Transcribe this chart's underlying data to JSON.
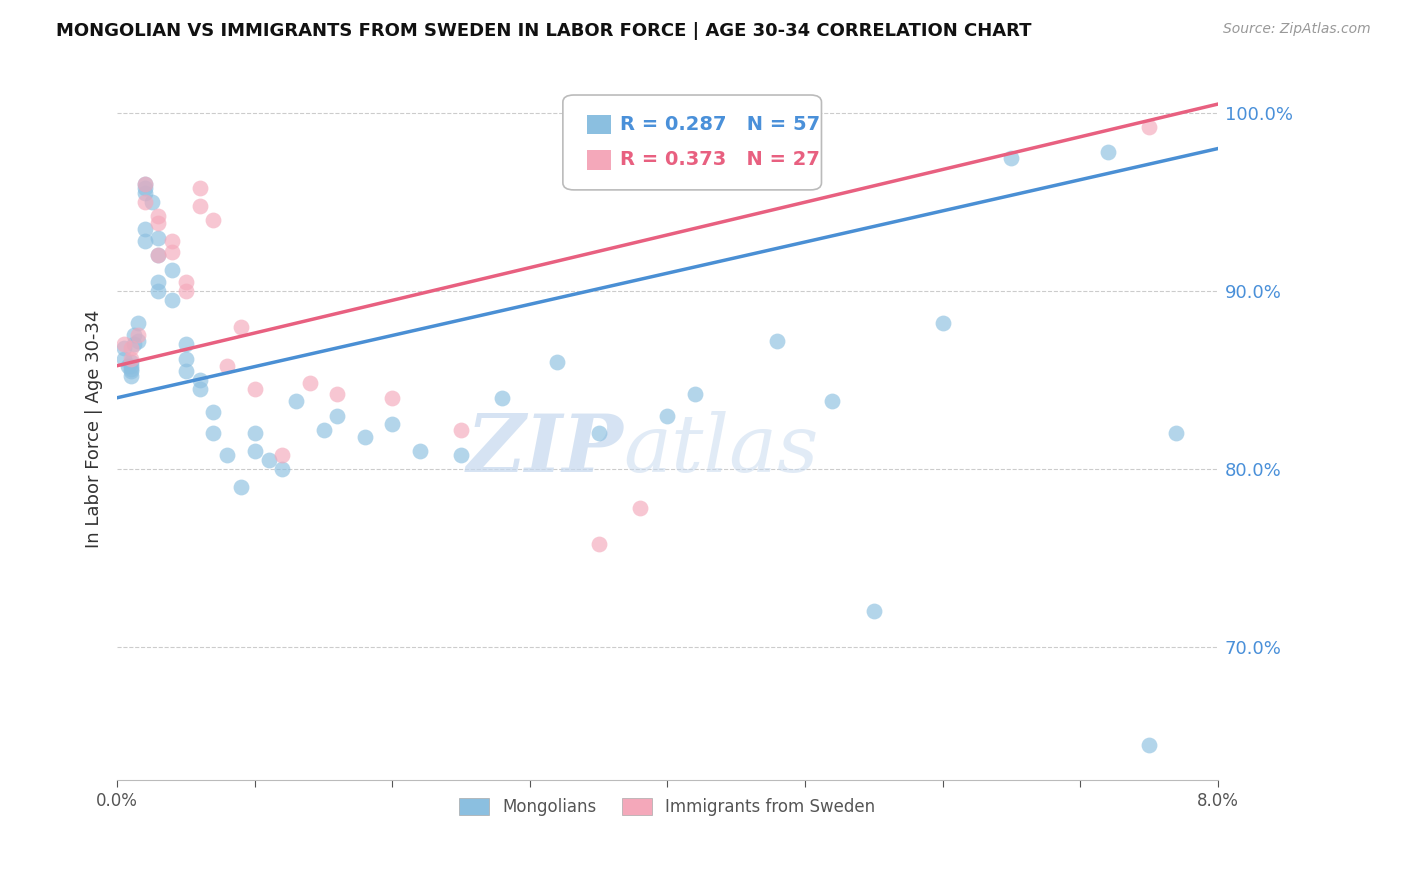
{
  "title": "MONGOLIAN VS IMMIGRANTS FROM SWEDEN IN LABOR FORCE | AGE 30-34 CORRELATION CHART",
  "source": "Source: ZipAtlas.com",
  "ylabel": "In Labor Force | Age 30-34",
  "right_yticks": [
    0.7,
    0.8,
    0.9,
    1.0
  ],
  "right_yticklabels": [
    "70.0%",
    "80.0%",
    "90.0%",
    "100.0%"
  ],
  "xmin": 0.0,
  "xmax": 0.08,
  "ymin": 0.625,
  "ymax": 1.02,
  "mongolian_color": "#8bbfe0",
  "sweden_color": "#f4a8ba",
  "mongolian_line_color": "#4a8fd4",
  "sweden_line_color": "#e86080",
  "legend_r_mongolian": "R = 0.287",
  "legend_n_mongolian": "N = 57",
  "legend_r_sweden": "R = 0.373",
  "legend_n_sweden": "N = 27",
  "legend_label_mongolian": "Mongolians",
  "legend_label_sweden": "Immigrants from Sweden",
  "watermark_zip": "ZIP",
  "watermark_atlas": "atlas",
  "mongolian_x": [
    0.0005,
    0.0005,
    0.0008,
    0.001,
    0.001,
    0.001,
    0.001,
    0.001,
    0.0012,
    0.0012,
    0.0015,
    0.0015,
    0.002,
    0.002,
    0.002,
    0.002,
    0.002,
    0.0025,
    0.003,
    0.003,
    0.003,
    0.003,
    0.004,
    0.004,
    0.005,
    0.005,
    0.005,
    0.006,
    0.006,
    0.007,
    0.007,
    0.008,
    0.009,
    0.01,
    0.01,
    0.011,
    0.012,
    0.013,
    0.015,
    0.016,
    0.018,
    0.02,
    0.022,
    0.025,
    0.028,
    0.032,
    0.035,
    0.04,
    0.042,
    0.048,
    0.052,
    0.055,
    0.06,
    0.065,
    0.072,
    0.075,
    0.077
  ],
  "mongolian_y": [
    0.868,
    0.862,
    0.858,
    0.86,
    0.858,
    0.856,
    0.855,
    0.852,
    0.875,
    0.87,
    0.882,
    0.872,
    0.96,
    0.958,
    0.955,
    0.935,
    0.928,
    0.95,
    0.93,
    0.92,
    0.905,
    0.9,
    0.912,
    0.895,
    0.87,
    0.862,
    0.855,
    0.85,
    0.845,
    0.832,
    0.82,
    0.808,
    0.79,
    0.82,
    0.81,
    0.805,
    0.8,
    0.838,
    0.822,
    0.83,
    0.818,
    0.825,
    0.81,
    0.808,
    0.84,
    0.86,
    0.82,
    0.83,
    0.842,
    0.872,
    0.838,
    0.72,
    0.882,
    0.975,
    0.978,
    0.645,
    0.82
  ],
  "sweden_x": [
    0.0005,
    0.001,
    0.001,
    0.0015,
    0.002,
    0.002,
    0.003,
    0.003,
    0.003,
    0.004,
    0.004,
    0.005,
    0.005,
    0.006,
    0.006,
    0.007,
    0.008,
    0.009,
    0.01,
    0.012,
    0.014,
    0.016,
    0.02,
    0.025,
    0.035,
    0.038,
    0.075
  ],
  "sweden_y": [
    0.87,
    0.868,
    0.862,
    0.875,
    0.96,
    0.95,
    0.942,
    0.938,
    0.92,
    0.928,
    0.922,
    0.905,
    0.9,
    0.958,
    0.948,
    0.94,
    0.858,
    0.88,
    0.845,
    0.808,
    0.848,
    0.842,
    0.84,
    0.822,
    0.758,
    0.778,
    0.992
  ],
  "trend_xrange": [
    0.0,
    0.08
  ],
  "mongolian_trend_y": [
    0.84,
    0.98
  ],
  "sweden_trend_y": [
    0.858,
    1.005
  ]
}
